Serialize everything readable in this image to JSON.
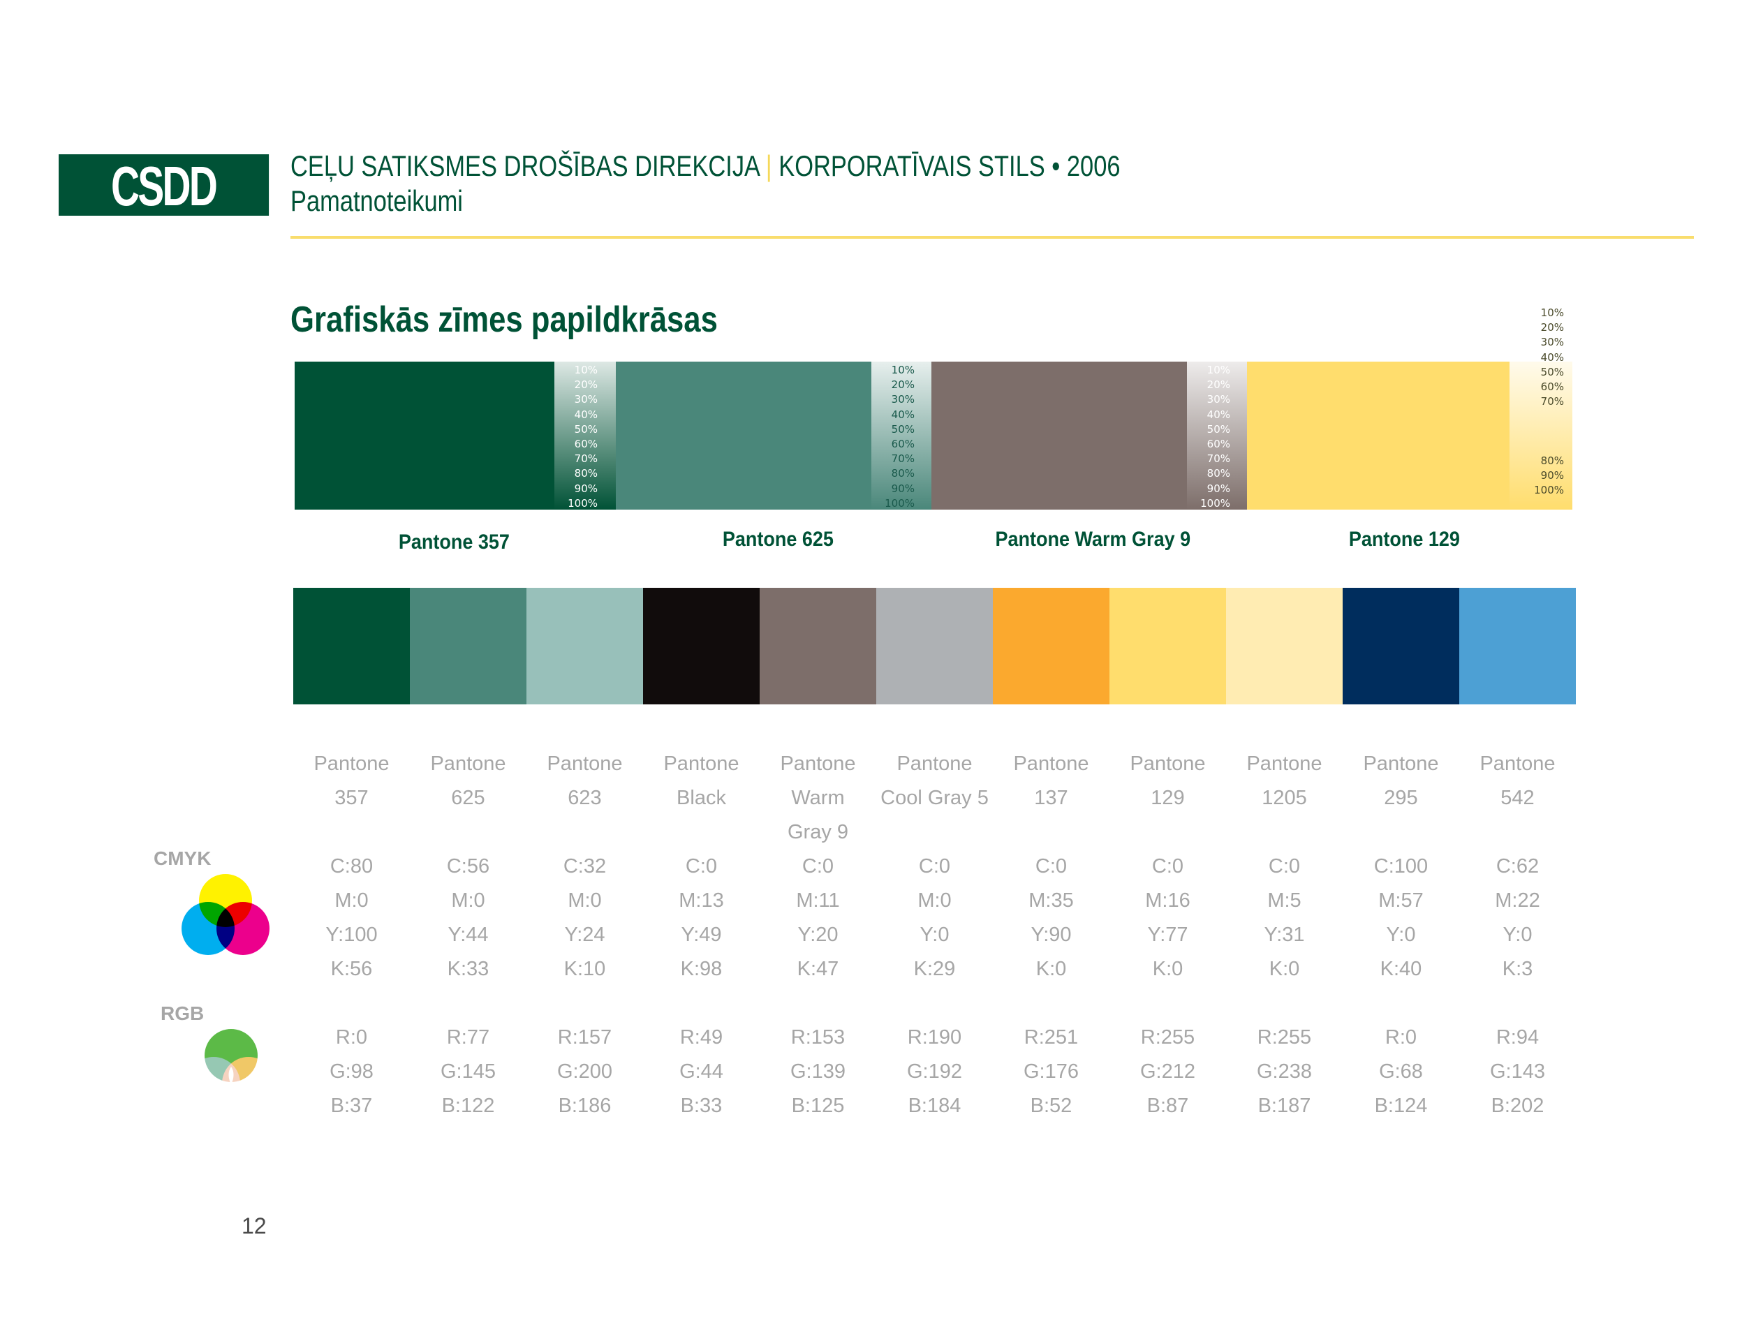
{
  "header": {
    "logo_text": "CSDD",
    "org": "CEĻU SATIKSMES DROŠĪBAS DIREKCIJA",
    "separator": "|",
    "style_line": "KORPORATĪVAIS STILS • 2006",
    "subtitle": "Pamatnoteikumi"
  },
  "section_title": "Grafiskās zīmes papildkrāsas",
  "tint_labels": [
    "10%",
    "20%",
    "30%",
    "40%",
    "50%",
    "60%",
    "70%",
    "80%",
    "90%",
    "100%"
  ],
  "main_colors": [
    {
      "name": "Pantone 357",
      "hex": "#005236"
    },
    {
      "name": "Pantone 625",
      "hex": "#4a877a"
    },
    {
      "name": "Pantone Warm Gray 9",
      "hex": "#7d6e6a"
    },
    {
      "name": "Pantone 129",
      "hex": "#ffdd6d"
    }
  ],
  "palette": [
    {
      "name_lines": [
        "Pantone",
        "357"
      ],
      "hex": "#005236",
      "cmyk": [
        "C:80",
        "M:0",
        "Y:100",
        "K:56"
      ],
      "rgb": [
        "R:0",
        "G:98",
        "B:37"
      ]
    },
    {
      "name_lines": [
        "Pantone",
        "625"
      ],
      "hex": "#4a877a",
      "cmyk": [
        "C:56",
        "M:0",
        "Y:44",
        "K:33"
      ],
      "rgb": [
        "R:77",
        "G:145",
        "B:122"
      ]
    },
    {
      "name_lines": [
        "Pantone",
        "623"
      ],
      "hex": "#98c0ba",
      "cmyk": [
        "C:32",
        "M:0",
        "Y:24",
        "K:10"
      ],
      "rgb": [
        "R:157",
        "G:200",
        "B:186"
      ]
    },
    {
      "name_lines": [
        "Pantone",
        "Black"
      ],
      "hex": "#110c0c",
      "cmyk": [
        "C:0",
        "M:13",
        "Y:49",
        "K:98"
      ],
      "rgb": [
        "R:49",
        "G:44",
        "B:33"
      ]
    },
    {
      "name_lines": [
        "Pantone",
        "Warm",
        "Gray 9"
      ],
      "hex": "#7d6e6a",
      "cmyk": [
        "C:0",
        "M:11",
        "Y:20",
        "K:47"
      ],
      "rgb": [
        "R:153",
        "G:139",
        "B:125"
      ]
    },
    {
      "name_lines": [
        "Pantone",
        "Cool Gray 5"
      ],
      "hex": "#aeb1b4",
      "cmyk": [
        "C:0",
        "M:0",
        "Y:0",
        "K:29"
      ],
      "rgb": [
        "R:190",
        "G:192",
        "B:184"
      ]
    },
    {
      "name_lines": [
        "Pantone",
        "137"
      ],
      "hex": "#fba92e",
      "cmyk": [
        "C:0",
        "M:35",
        "Y:90",
        "K:0"
      ],
      "rgb": [
        "R:251",
        "G:176",
        "B:52"
      ]
    },
    {
      "name_lines": [
        "Pantone",
        "129"
      ],
      "hex": "#ffdd6d",
      "cmyk": [
        "C:0",
        "M:16",
        "Y:77",
        "K:0"
      ],
      "rgb": [
        "R:255",
        "G:212",
        "B:87"
      ]
    },
    {
      "name_lines": [
        "Pantone",
        "1205"
      ],
      "hex": "#ffecb2",
      "cmyk": [
        "C:0",
        "M:5",
        "Y:31",
        "K:0"
      ],
      "rgb": [
        "R:255",
        "G:238",
        "B:187"
      ]
    },
    {
      "name_lines": [
        "Pantone",
        "295"
      ],
      "hex": "#002d5d",
      "cmyk": [
        "C:100",
        "M:57",
        "Y:0",
        "K:40"
      ],
      "rgb": [
        "R:0",
        "G:68",
        "B:124"
      ]
    },
    {
      "name_lines": [
        "Pantone",
        "542"
      ],
      "hex": "#4da0d4",
      "cmyk": [
        "C:62",
        "M:22",
        "Y:0",
        "K:3"
      ],
      "rgb": [
        "R:94",
        "G:143",
        "B:202"
      ]
    }
  ],
  "labels": {
    "cmyk": "CMYK",
    "rgb": "RGB"
  },
  "page_number": "12"
}
